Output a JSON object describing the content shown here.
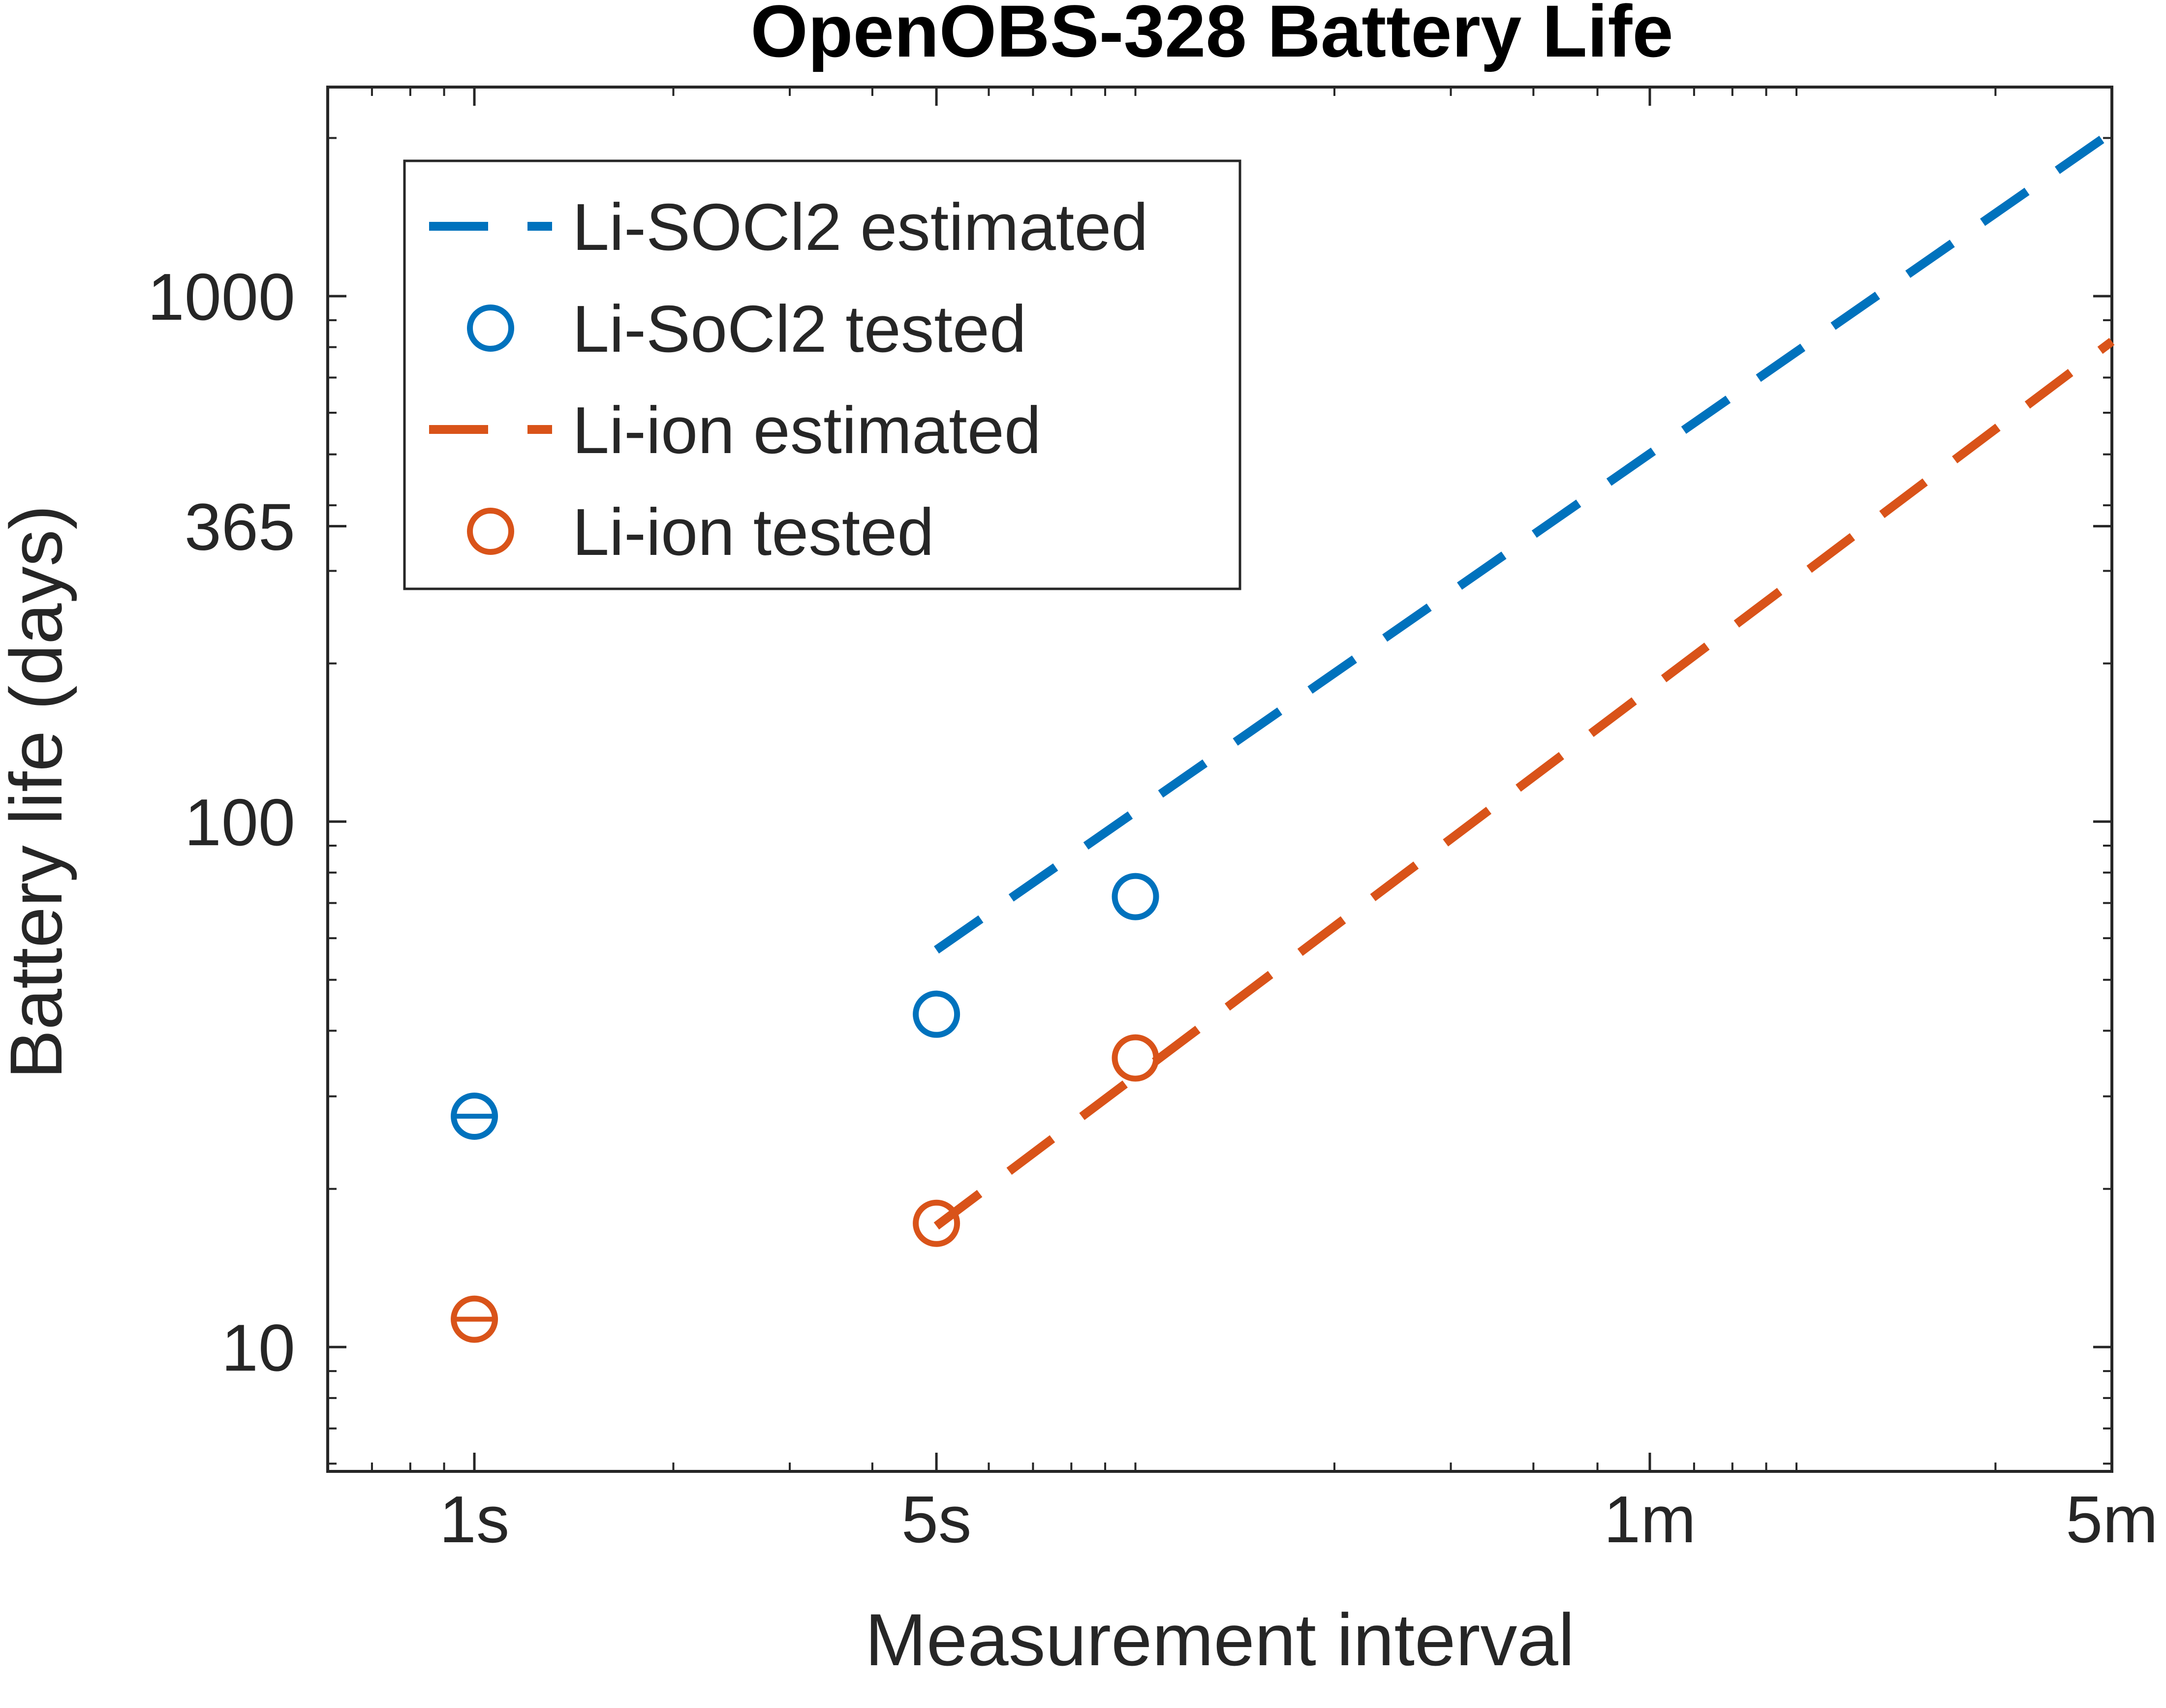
{
  "chart_data": {
    "type": "line",
    "title": "OpenOBS-328 Battery Life",
    "xlabel": "Measurement interval",
    "ylabel": "Battery life (days)",
    "x_scale": "log",
    "y_scale": "log",
    "x_unit": "seconds",
    "xlim": [
      0.6,
      300
    ],
    "ylim": [
      5.8,
      2500
    ],
    "xticks": [
      {
        "value": 1,
        "label": "1s"
      },
      {
        "value": 5,
        "label": "5s"
      },
      {
        "value": 60,
        "label": "1m"
      },
      {
        "value": 300,
        "label": "5m"
      }
    ],
    "yticks": [
      {
        "value": 10,
        "label": "10"
      },
      {
        "value": 100,
        "label": "100"
      },
      {
        "value": 365,
        "label": "365"
      },
      {
        "value": 1000,
        "label": "1000"
      }
    ],
    "grid": false,
    "legend_position": "top-left",
    "series": [
      {
        "name": "Li-SOCl2 estimated",
        "style": "dashed-line",
        "color": "#0072BD",
        "x": [
          5,
          300
        ],
        "y": [
          57,
          2050
        ]
      },
      {
        "name": "Li-SoCl2 tested",
        "style": "circle-marker",
        "color": "#0072BD",
        "x": [
          1,
          5,
          10
        ],
        "y": [
          27.5,
          43,
          72
        ]
      },
      {
        "name": "Li-ion estimated",
        "style": "dashed-line",
        "color": "#D95319",
        "x": [
          5,
          300
        ],
        "y": [
          17,
          820
        ]
      },
      {
        "name": "Li-ion tested",
        "style": "circle-marker",
        "color": "#D95319",
        "x": [
          1,
          5,
          10
        ],
        "y": [
          11.3,
          17.2,
          35.5
        ]
      }
    ],
    "error_bars": [
      {
        "series": "Li-SoCl2 tested",
        "x": 1,
        "y": 27.5
      },
      {
        "series": "Li-ion tested",
        "x": 1,
        "y": 11.3
      }
    ]
  }
}
